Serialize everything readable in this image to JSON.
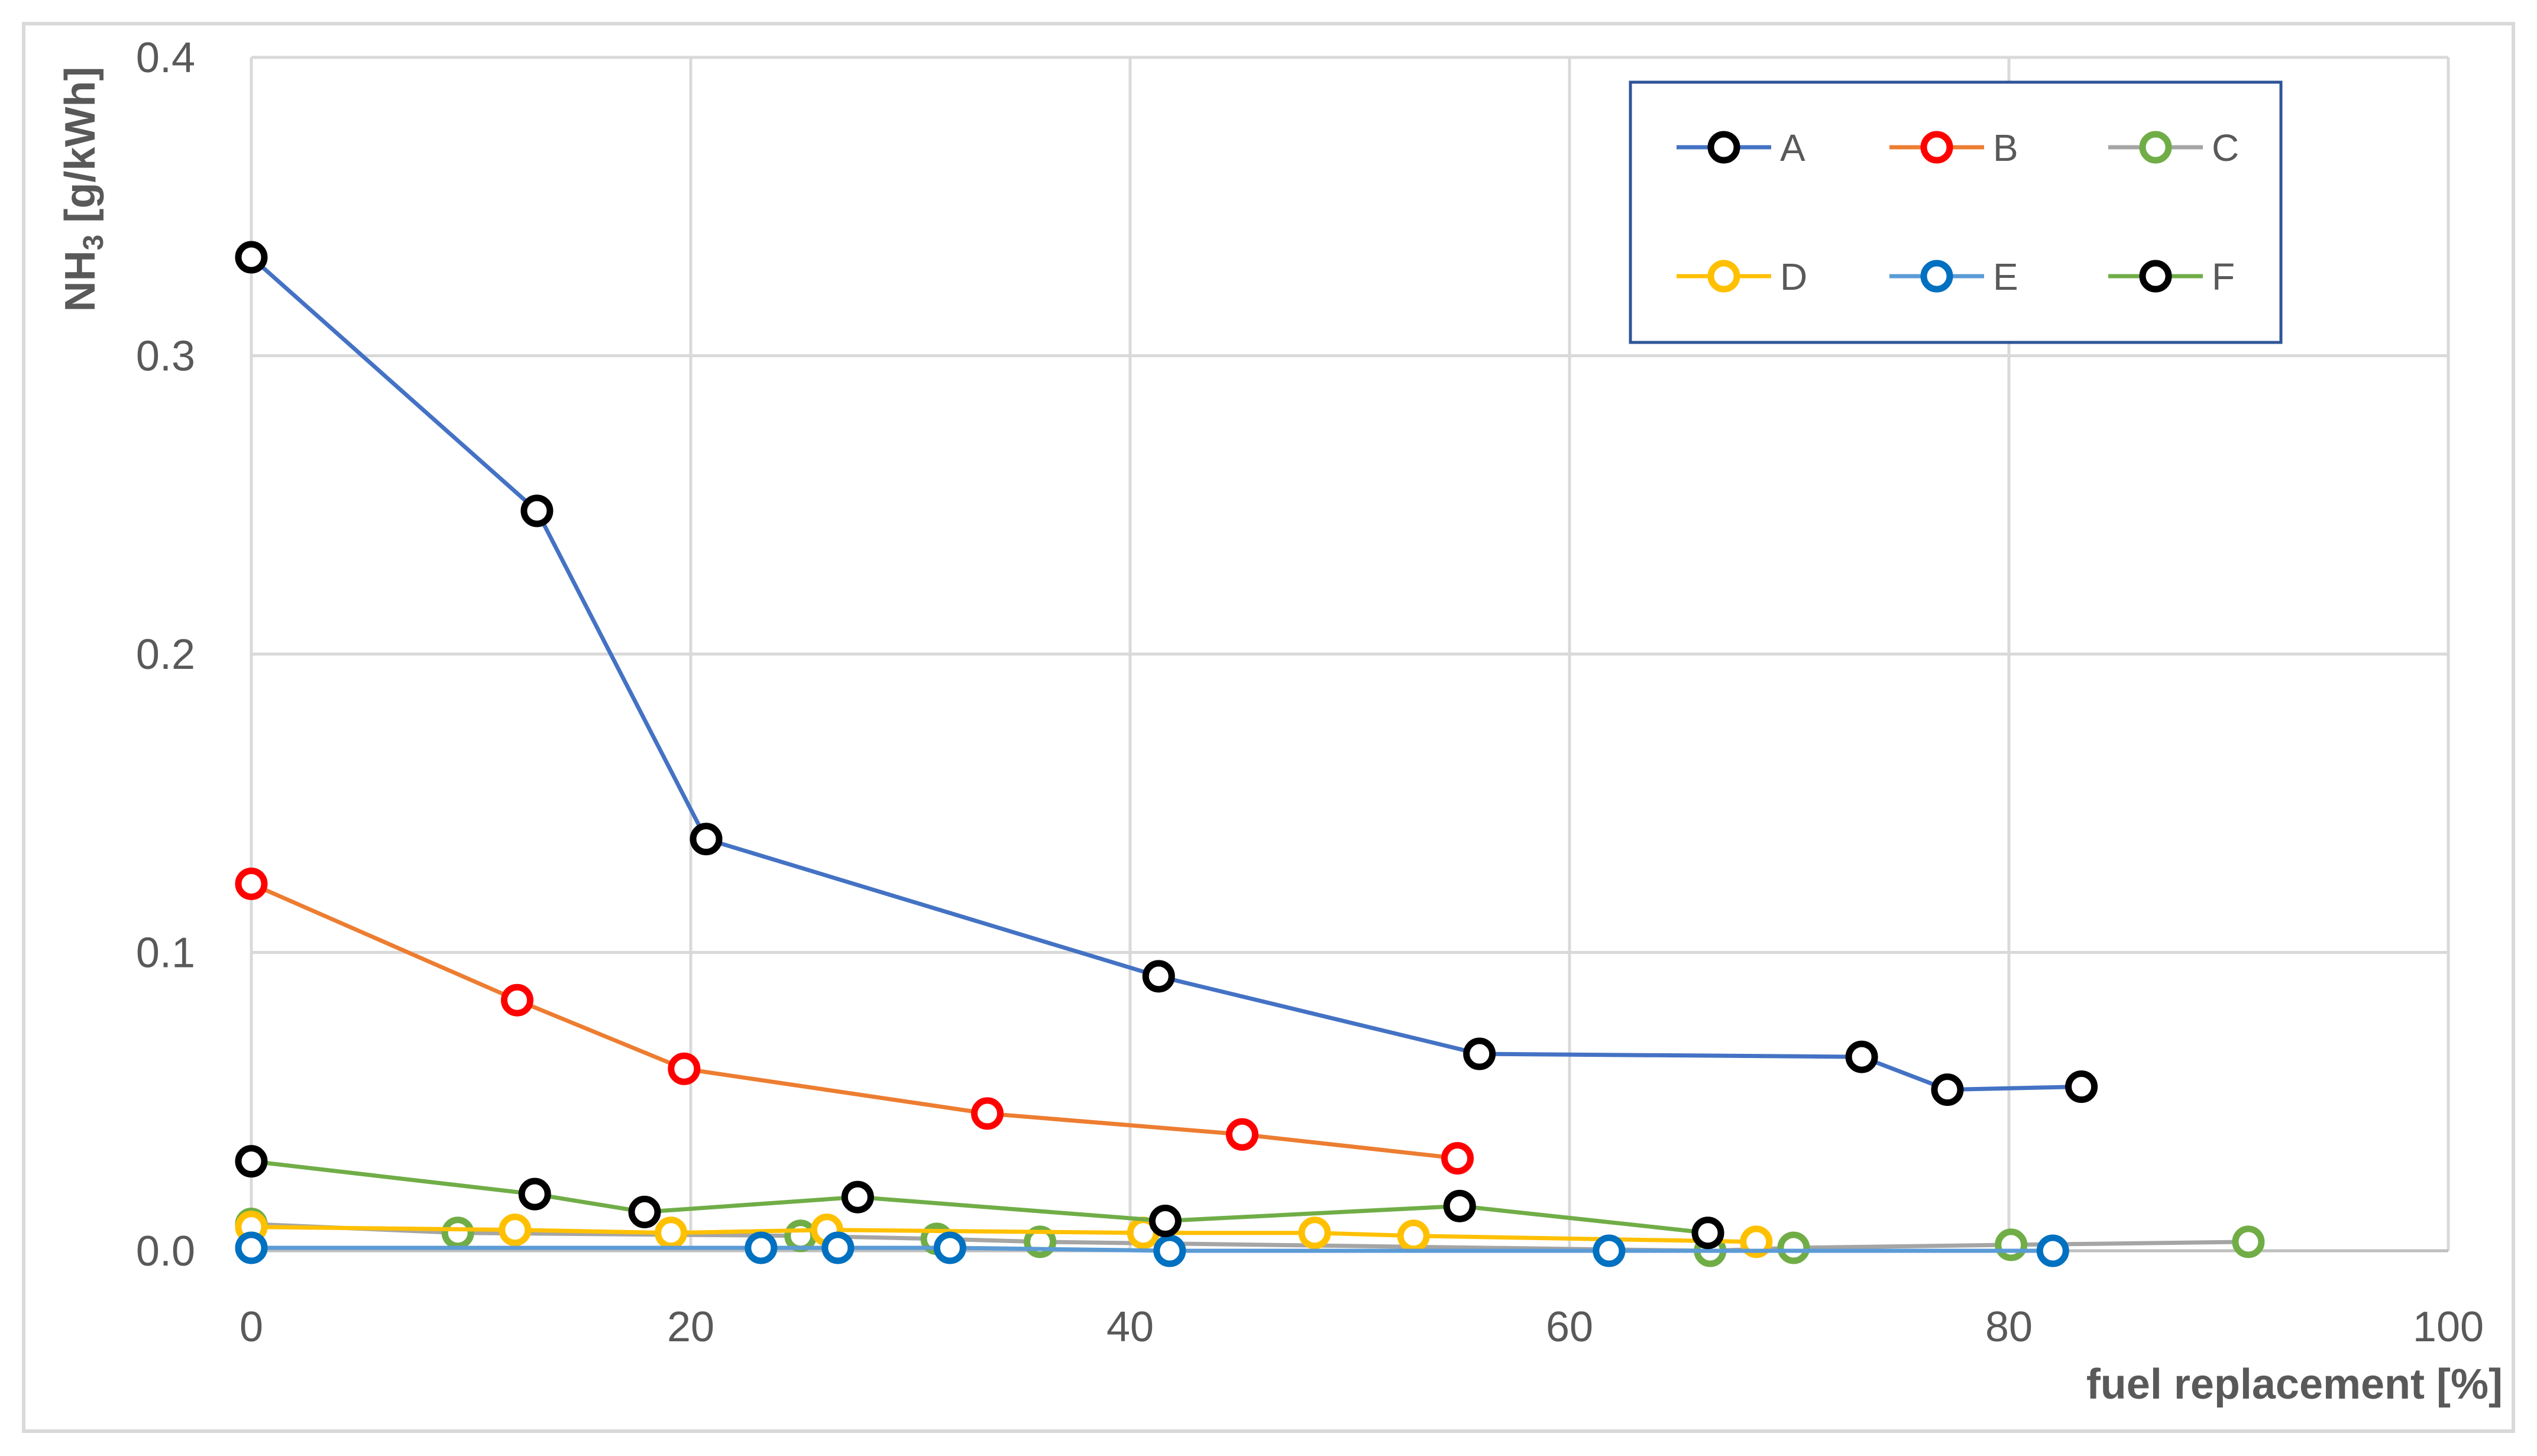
{
  "chart_data": {
    "type": "scatter",
    "xlabel": "fuel replacement [%]",
    "ylabel": {
      "main": "NH",
      "sub": "3",
      "tail": " [g/kWh]"
    },
    "xlim": [
      0,
      100
    ],
    "ylim": [
      0,
      0.4
    ],
    "x_ticks": [
      0,
      20,
      40,
      60,
      80,
      100
    ],
    "y_ticks": [
      0.0,
      0.1,
      0.2,
      0.3,
      0.4
    ],
    "x_tick_labels": [
      "0",
      "20",
      "40",
      "60",
      "80",
      "100"
    ],
    "y_tick_labels": [
      "0.0",
      "0.1",
      "0.2",
      "0.3",
      "0.4"
    ],
    "grid": true,
    "legend_position": "top-right",
    "series": [
      {
        "name": "A",
        "line_color": "#4472C4",
        "marker_color": "#000000",
        "x": [
          0,
          13,
          20.7,
          41.3,
          55.9,
          73.3,
          77.2,
          83.3
        ],
        "y": [
          0.333,
          0.248,
          0.138,
          0.092,
          0.066,
          0.065,
          0.054,
          0.055
        ]
      },
      {
        "name": "B",
        "line_color": "#ED7D31",
        "marker_color": "#FF0000",
        "x": [
          0,
          12.1,
          19.7,
          33.5,
          45.1,
          54.9
        ],
        "y": [
          0.123,
          0.084,
          0.061,
          0.046,
          0.039,
          0.031
        ]
      },
      {
        "name": "C",
        "line_color": "#A5A5A5",
        "marker_color": "#70AD47",
        "x": [
          0,
          9.4,
          25,
          31.2,
          35.9,
          66.4,
          70.2,
          80.1,
          90.9
        ],
        "y": [
          0.009,
          0.006,
          0.005,
          0.004,
          0.003,
          0.0,
          0.001,
          0.002,
          0.003
        ]
      },
      {
        "name": "D",
        "line_color": "#FFC000",
        "marker_color": "#FFC000",
        "x": [
          0,
          12,
          19.1,
          26.2,
          40.6,
          48.4,
          52.9,
          68.5
        ],
        "y": [
          0.008,
          0.007,
          0.006,
          0.007,
          0.006,
          0.006,
          0.005,
          0.003
        ]
      },
      {
        "name": "E",
        "line_color": "#5B9BD5",
        "marker_color": "#0070C0",
        "x": [
          0,
          23.2,
          26.7,
          31.8,
          41.8,
          61.8,
          82
        ],
        "y": [
          0.001,
          0.001,
          0.001,
          0.001,
          0.0,
          0.0,
          0.0
        ]
      },
      {
        "name": "F",
        "line_color": "#70AD47",
        "marker_color": "#000000",
        "x": [
          0,
          12.9,
          17.9,
          27.6,
          41.6,
          55,
          66.3
        ],
        "y": [
          0.03,
          0.019,
          0.013,
          0.018,
          0.01,
          0.015,
          0.006
        ]
      }
    ]
  }
}
